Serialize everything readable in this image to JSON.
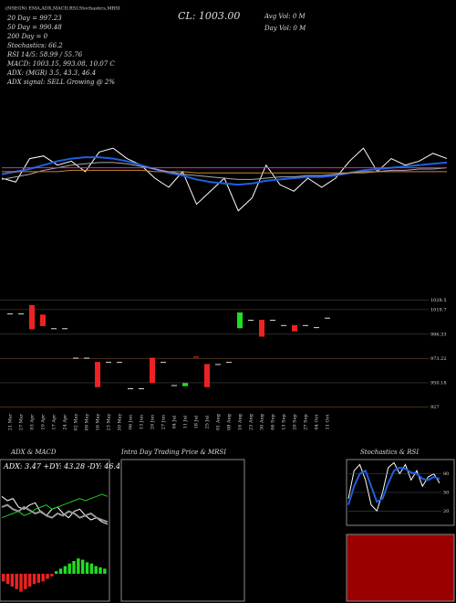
{
  "header": {
    "top_line": "(NSEGN) EMA,ADX,MACD,RSI,Stochastics,MRSI",
    "cl": "CL: 1003.00",
    "avg_vol": "Avg Vol: 0  M",
    "day_vol": "Day Vol: 0  M",
    "legend": [
      "20 Day = 997.23",
      "50 Day = 990.48",
      "200 Day = 0",
      "Stochastics: 66.2",
      "RSI 14/5: 58.99 / 55.76",
      "MACD: 1003.15, 993.08, 10.07 C",
      "ADX:  (MGR) 3.5, 43.3, 46.4",
      "ADX  signal: SELL Growing @ 2%"
    ]
  },
  "panels": {
    "adx_title": "ADX  & MACD",
    "adx_text": "ADX: 3.47 +DY: 43.28 -DY: 46.4",
    "intra_title": "Intra Day Trading Price  & MRSI",
    "stoch_title": "Stochastics & RSI"
  },
  "chart_data": [
    {
      "type": "line",
      "ylim": [
        950,
        1020
      ],
      "series": [
        {
          "color": "#ffffff",
          "values": [
            985,
            982,
            1000,
            1002,
            995,
            998,
            990,
            1005,
            1008,
            1000,
            995,
            985,
            978,
            990,
            965,
            975,
            985,
            960,
            970,
            995,
            980,
            975,
            985,
            978,
            985,
            998,
            1008,
            990,
            1000,
            995,
            998,
            1004,
            1000
          ]
        },
        {
          "color": "#1f5fe0",
          "values": [
            988,
            990,
            992,
            995,
            998,
            1000,
            1001,
            1001,
            1000,
            998,
            995,
            992,
            989,
            987,
            984,
            982,
            981,
            980,
            981,
            983,
            984,
            985,
            986,
            986,
            987,
            989,
            991,
            992,
            993,
            994,
            995,
            996,
            997
          ]
        },
        {
          "color": "#aaaaaa",
          "values": [
            984,
            986,
            988,
            991,
            993,
            995,
            996,
            997,
            997,
            996,
            994,
            992,
            990,
            988,
            987,
            986,
            985,
            984,
            984,
            985,
            986,
            986,
            987,
            987,
            988,
            989,
            990,
            990,
            991,
            991,
            992,
            992,
            993
          ]
        },
        {
          "color": "#c8872a",
          "values": [
            990,
            990,
            990,
            990,
            990,
            991,
            991,
            991,
            991,
            991,
            991,
            990,
            990,
            990,
            989,
            989,
            989,
            989,
            989,
            989,
            989,
            989,
            989,
            989,
            989,
            989,
            989,
            990,
            990,
            990,
            990,
            990,
            990
          ]
        },
        {
          "color": "#c030c0",
          "values": [
            993,
            993,
            993,
            993,
            993,
            993,
            993,
            993,
            993,
            993,
            993,
            993,
            993,
            993,
            993,
            993,
            993,
            993,
            993,
            993,
            993,
            993,
            993,
            993,
            993,
            993,
            993,
            993,
            993,
            993,
            993,
            993,
            993
          ]
        }
      ]
    },
    {
      "type": "candlestick",
      "ylim": [
        925,
        1030
      ],
      "yticks": [
        1028.5,
        1019.7,
        996.33,
        973.22,
        950.18,
        927
      ],
      "categories": [
        "21 Mar",
        "27 Mar",
        "03 Apr",
        "10 Apr",
        "17 Apr",
        "24 Apr",
        "02 May",
        "09 May",
        "16 May",
        "23 May",
        "30 May",
        "06 Jun",
        "13 Jun",
        "20 Jun",
        "27 Jun",
        "04 Jul",
        "11 Jul",
        "18 Jul",
        "25 Jul",
        "01 Aug",
        "08 Aug",
        "16 Aug",
        "23 Aug",
        "30 Aug",
        "06 Sep",
        "13 Sep",
        "20 Sep",
        "27 Sep",
        "04 Oct",
        "11 Oct"
      ],
      "open": [
        1016,
        1016,
        1024,
        1015,
        1002,
        1002,
        974,
        974,
        970,
        970,
        970,
        945,
        945,
        974,
        970,
        948,
        947,
        975,
        968,
        968,
        970,
        1002,
        1010,
        1010,
        1010,
        1005,
        1005,
        1005,
        1003,
        1012
      ],
      "close": [
        1016,
        1016,
        1001,
        1004,
        1002,
        1002,
        974,
        974,
        946,
        970,
        970,
        945,
        945,
        950,
        970,
        948,
        950,
        974,
        946,
        968,
        970,
        1017,
        1010,
        994,
        1010,
        1005,
        999,
        1005,
        1003,
        1012
      ]
    },
    {
      "type": "line",
      "ylim": [
        0,
        60
      ],
      "series": [
        {
          "color": "#ffffff",
          "values": [
            40,
            36,
            38,
            30,
            28,
            32,
            34,
            25,
            22,
            28,
            30,
            24,
            20,
            26,
            28,
            22,
            18,
            20,
            16,
            14
          ]
        },
        {
          "color": "#999999",
          "values": [
            30,
            32,
            28,
            26,
            30,
            27,
            24,
            26,
            22,
            20,
            24,
            22,
            26,
            24,
            20,
            22,
            24,
            20,
            18,
            16
          ]
        },
        {
          "color": "#22cc22",
          "values": [
            20,
            22,
            24,
            26,
            22,
            24,
            28,
            30,
            32,
            28,
            30,
            32,
            34,
            36,
            38,
            36,
            38,
            40,
            42,
            40
          ]
        }
      ]
    },
    {
      "type": "bar",
      "ylim": [
        -20,
        20
      ],
      "values": [
        -6,
        -8,
        -10,
        -12,
        -14,
        -12,
        -10,
        -8,
        -7,
        -6,
        -4,
        -2,
        2,
        4,
        6,
        8,
        10,
        12,
        11,
        9,
        8,
        6,
        5,
        4
      ]
    },
    {
      "type": "line",
      "ylim": [
        0,
        100
      ],
      "yticks": [
        80,
        50,
        20
      ],
      "series": [
        {
          "color": "#ffffff",
          "values": [
            40,
            85,
            95,
            70,
            30,
            20,
            50,
            90,
            98,
            80,
            95,
            70,
            85,
            60,
            75,
            80,
            65
          ]
        },
        {
          "color": "#1f5fe0",
          "values": [
            30,
            60,
            80,
            85,
            60,
            35,
            40,
            65,
            85,
            90,
            88,
            82,
            80,
            72,
            70,
            75,
            72
          ]
        }
      ]
    }
  ]
}
